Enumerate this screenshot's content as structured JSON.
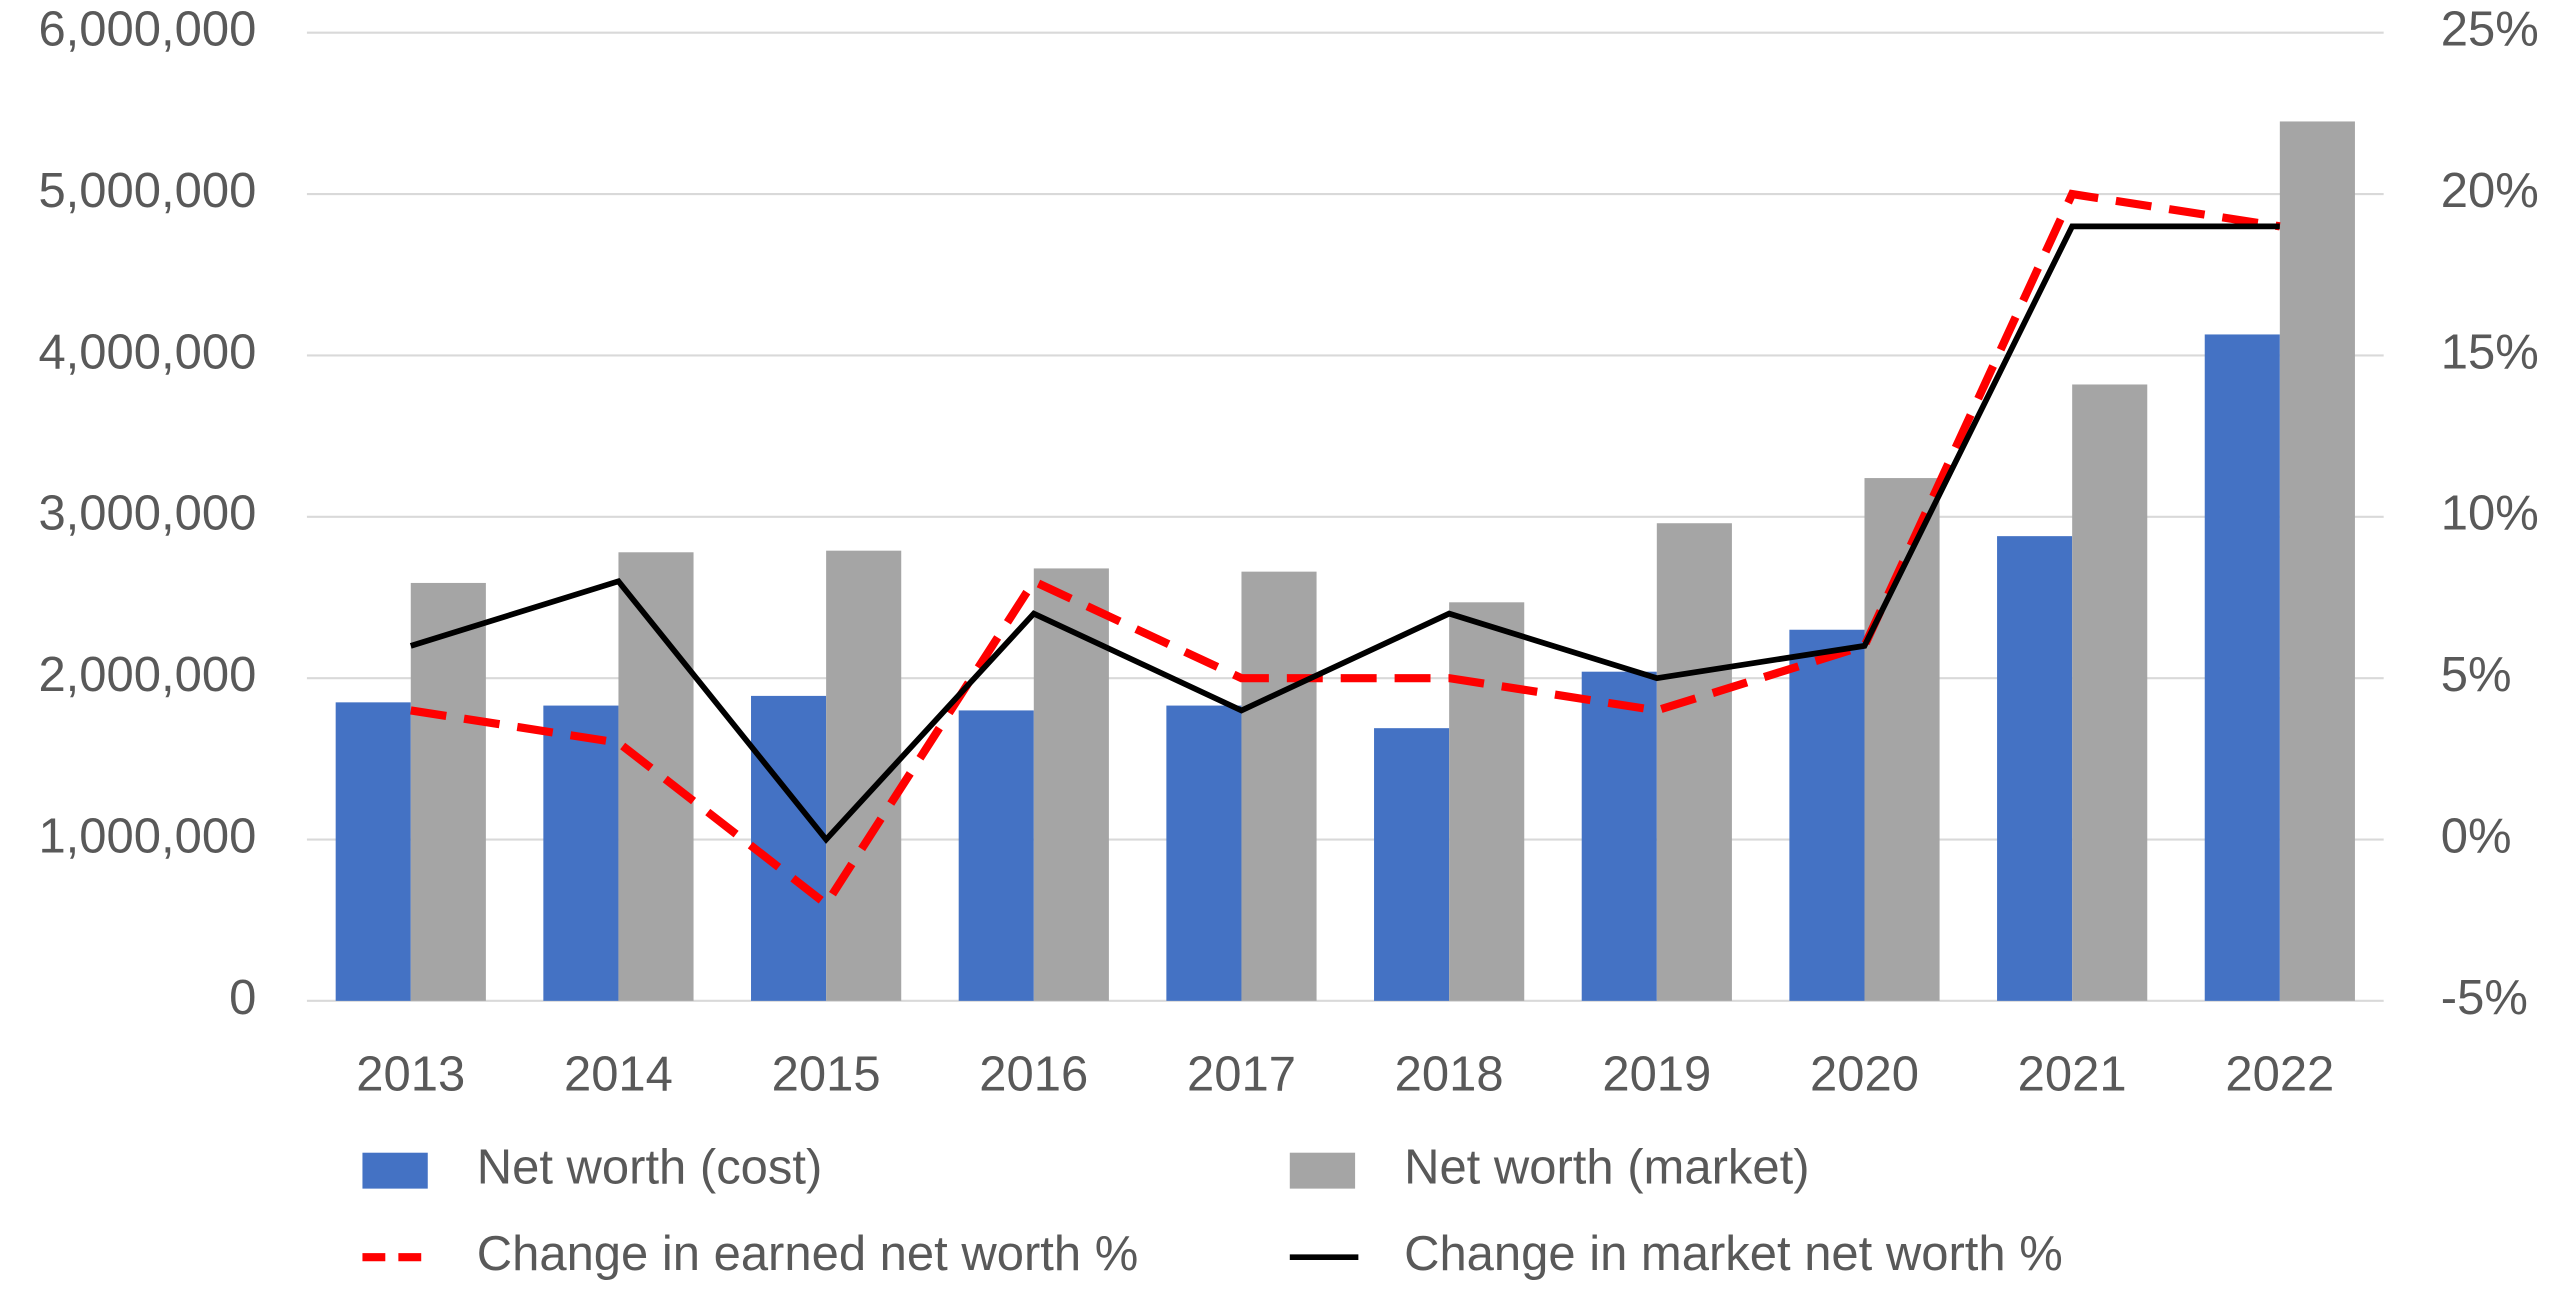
{
  "chart_data": {
    "type": "bar",
    "categories": [
      "2013",
      "2014",
      "2015",
      "2016",
      "2017",
      "2018",
      "2019",
      "2020",
      "2021",
      "2022"
    ],
    "series": [
      {
        "name": "Net worth (cost)",
        "color": "#4472c4",
        "values": [
          1850000,
          1830000,
          1890000,
          1800000,
          1830000,
          1690000,
          2040000,
          2300000,
          2880000,
          4130000
        ]
      },
      {
        "name": "Net worth (market)",
        "color": "#a5a5a5",
        "values": [
          2590000,
          2780000,
          2790000,
          2680000,
          2660000,
          2470000,
          2960000,
          3240000,
          3820000,
          5450000
        ]
      },
      {
        "name": "Change in earned net worth %",
        "type": "line",
        "axis": "y2",
        "dash": true,
        "color": "#ff0000",
        "values": [
          4,
          3,
          -2,
          8,
          5,
          5,
          4,
          6,
          20,
          19
        ]
      },
      {
        "name": "Change in market net worth %",
        "type": "line",
        "axis": "y2",
        "color": "#000000",
        "values": [
          6,
          8,
          0,
          7,
          4,
          7,
          5,
          6,
          19,
          19
        ]
      }
    ],
    "ylim": [
      0,
      6000000
    ],
    "yticks": [
      {
        "value": 0,
        "label": "0"
      },
      {
        "value": 1000000,
        "label": "1,000,000"
      },
      {
        "value": 2000000,
        "label": "2,000,000"
      },
      {
        "value": 3000000,
        "label": "3,000,000"
      },
      {
        "value": 4000000,
        "label": "4,000,000"
      },
      {
        "value": 5000000,
        "label": "5,000,000"
      },
      {
        "value": 6000000,
        "label": "6,000,000"
      }
    ],
    "y2lim": [
      -5,
      25
    ],
    "y2ticks": [
      {
        "value": -5,
        "label": "-5%"
      },
      {
        "value": 0,
        "label": "0%"
      },
      {
        "value": 5,
        "label": "5%"
      },
      {
        "value": 10,
        "label": "10%"
      },
      {
        "value": 15,
        "label": "15%"
      },
      {
        "value": 20,
        "label": "20%"
      },
      {
        "value": 25,
        "label": "25%"
      }
    ],
    "grid": true,
    "legend": "bottom"
  }
}
